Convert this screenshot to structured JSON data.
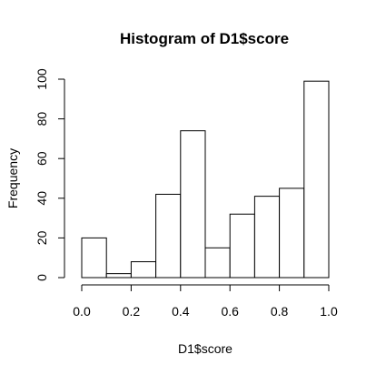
{
  "chart_data": {
    "type": "bar",
    "title": "Histogram of D1$score",
    "xlabel": "D1$score",
    "ylabel": "Frequency",
    "bin_edges": [
      0.0,
      0.1,
      0.2,
      0.3,
      0.4,
      0.5,
      0.6,
      0.7,
      0.8,
      0.9,
      1.0
    ],
    "values": [
      20,
      2,
      8,
      42,
      74,
      15,
      32,
      41,
      45,
      99
    ],
    "xlim": [
      0,
      1
    ],
    "ylim": [
      0,
      100
    ],
    "x_ticks": [
      0.0,
      0.2,
      0.4,
      0.6,
      0.8,
      1.0
    ],
    "x_tick_labels": [
      "0.0",
      "0.2",
      "0.4",
      "0.6",
      "0.8",
      "1.0"
    ],
    "y_ticks": [
      0,
      20,
      40,
      60,
      80,
      100
    ],
    "y_tick_labels": [
      "0",
      "20",
      "40",
      "60",
      "80",
      "100"
    ],
    "grid": false,
    "legend": "none",
    "colors": {
      "bar_fill": "#ffffff",
      "bar_stroke": "#000000",
      "background": "#ffffff"
    }
  }
}
